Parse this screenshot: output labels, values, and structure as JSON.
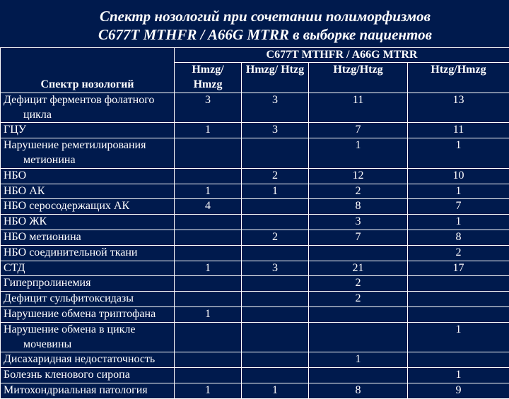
{
  "title_line1": "Спектр нозологий при сочетании полиморфизмов",
  "title_line2": "C677T MTHFR / A66G MTRR в выборке пациентов",
  "super_header": "C677T MTHFR / A66G MTRR",
  "row_header": "Спектр нозологий",
  "col_headers": [
    "Hmzg/ Hmzg",
    "Hmzg/ Htzg",
    "Htzg/Htzg",
    "Htzg/Hmzg"
  ],
  "rows": [
    {
      "label": "Дефицит ферментов фолатного",
      "indent": "цикла",
      "v": [
        "3",
        "3",
        "11",
        "13"
      ]
    },
    {
      "label": "ГЦУ",
      "v": [
        "1",
        "3",
        "7",
        "11"
      ]
    },
    {
      "label": "Нарушение реметилирования",
      "indent": "метионина",
      "v": [
        "",
        "",
        "1",
        "1"
      ]
    },
    {
      "label": "НБО",
      "v": [
        "",
        "2",
        "12",
        "10"
      ]
    },
    {
      "label": "НБО АК",
      "v": [
        "1",
        "1",
        "2",
        "1"
      ]
    },
    {
      "label": "НБО серосодержащих АК",
      "v": [
        "4",
        "",
        "8",
        "7"
      ]
    },
    {
      "label": "НБО ЖК",
      "v": [
        "",
        "",
        "3",
        "1"
      ]
    },
    {
      "label": "НБО метионина",
      "v": [
        "",
        "2",
        "7",
        "8"
      ]
    },
    {
      "label": "НБО соединительной ткани",
      "v": [
        "",
        "",
        "",
        "2"
      ]
    },
    {
      "label": "СТД",
      "v": [
        "1",
        "3",
        "21",
        "17"
      ]
    },
    {
      "label": "Гиперпролинемия",
      "v": [
        "",
        "",
        "2",
        ""
      ]
    },
    {
      "label": "Дефицит сульфитоксидазы",
      "v": [
        "",
        "",
        "2",
        ""
      ]
    },
    {
      "label": "Нарушение обмена триптофана",
      "v": [
        "1",
        "",
        "",
        ""
      ]
    },
    {
      "label": "Нарушение обмена в цикле",
      "indent": "мочевины",
      "v": [
        "",
        "",
        "",
        "1"
      ]
    },
    {
      "label": "Дисахаридная недостаточность",
      "v": [
        "",
        "",
        "1",
        ""
      ]
    },
    {
      "label": "Болезнь кленового сиропа",
      "v": [
        "",
        "",
        "",
        "1"
      ]
    },
    {
      "label": "Митохондриальная патология",
      "v": [
        "1",
        "1",
        "8",
        "9"
      ]
    }
  ]
}
